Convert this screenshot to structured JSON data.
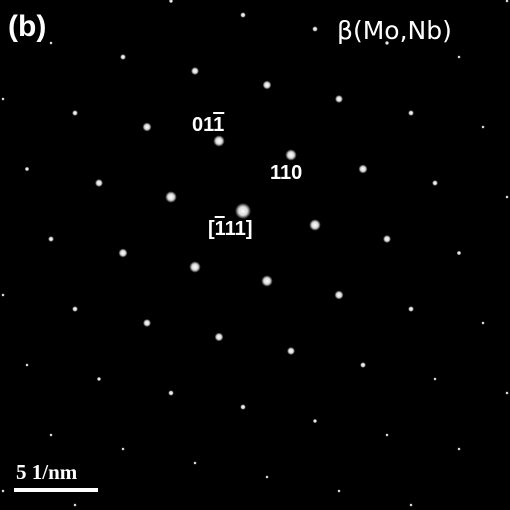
{
  "panel_label": "(b)",
  "phase_label": "β(Mo,Nb)",
  "index_labels": {
    "spot_011": {
      "prefix": "01",
      "barred": "1",
      "suffix": ""
    },
    "spot_110": {
      "text": "110"
    },
    "zone_axis": {
      "open": "[",
      "barred": "1",
      "rest": "11]"
    }
  },
  "scale_bar": {
    "text": "5 1/nm",
    "color": "#ffffff"
  },
  "colors": {
    "background": "#000000",
    "spot": "#ffffff"
  }
}
